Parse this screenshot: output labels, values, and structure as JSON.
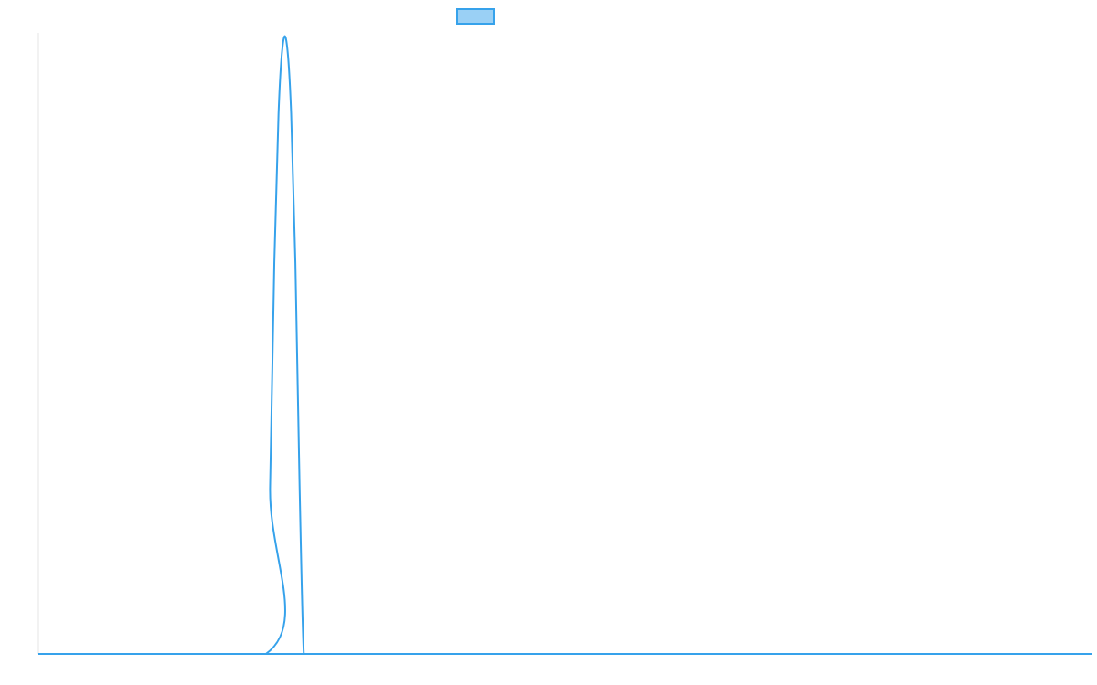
{
  "chart_data": {
    "type": "line",
    "title": "",
    "xlabel": "",
    "ylabel": "",
    "x_range": [
      0,
      100
    ],
    "ylim": [
      0,
      1
    ],
    "grid": false,
    "legend": {
      "position": "top-center",
      "entries": [
        {
          "name": "",
          "color": "#36a2eb",
          "fill": "#9ad0f5"
        }
      ]
    },
    "series": [
      {
        "name": "",
        "color": "#36a2eb",
        "x": [
          0,
          21.6,
          22.0,
          22.4,
          22.8,
          23.2,
          23.6,
          24.0,
          24.4,
          24.8,
          25.2,
          25.6,
          25.9,
          100
        ],
        "values": [
          0,
          0,
          0.27,
          0.63,
          0.87,
          0.98,
          0.98,
          0.87,
          0.63,
          0.27,
          0,
          0,
          0,
          0
        ]
      }
    ]
  }
}
